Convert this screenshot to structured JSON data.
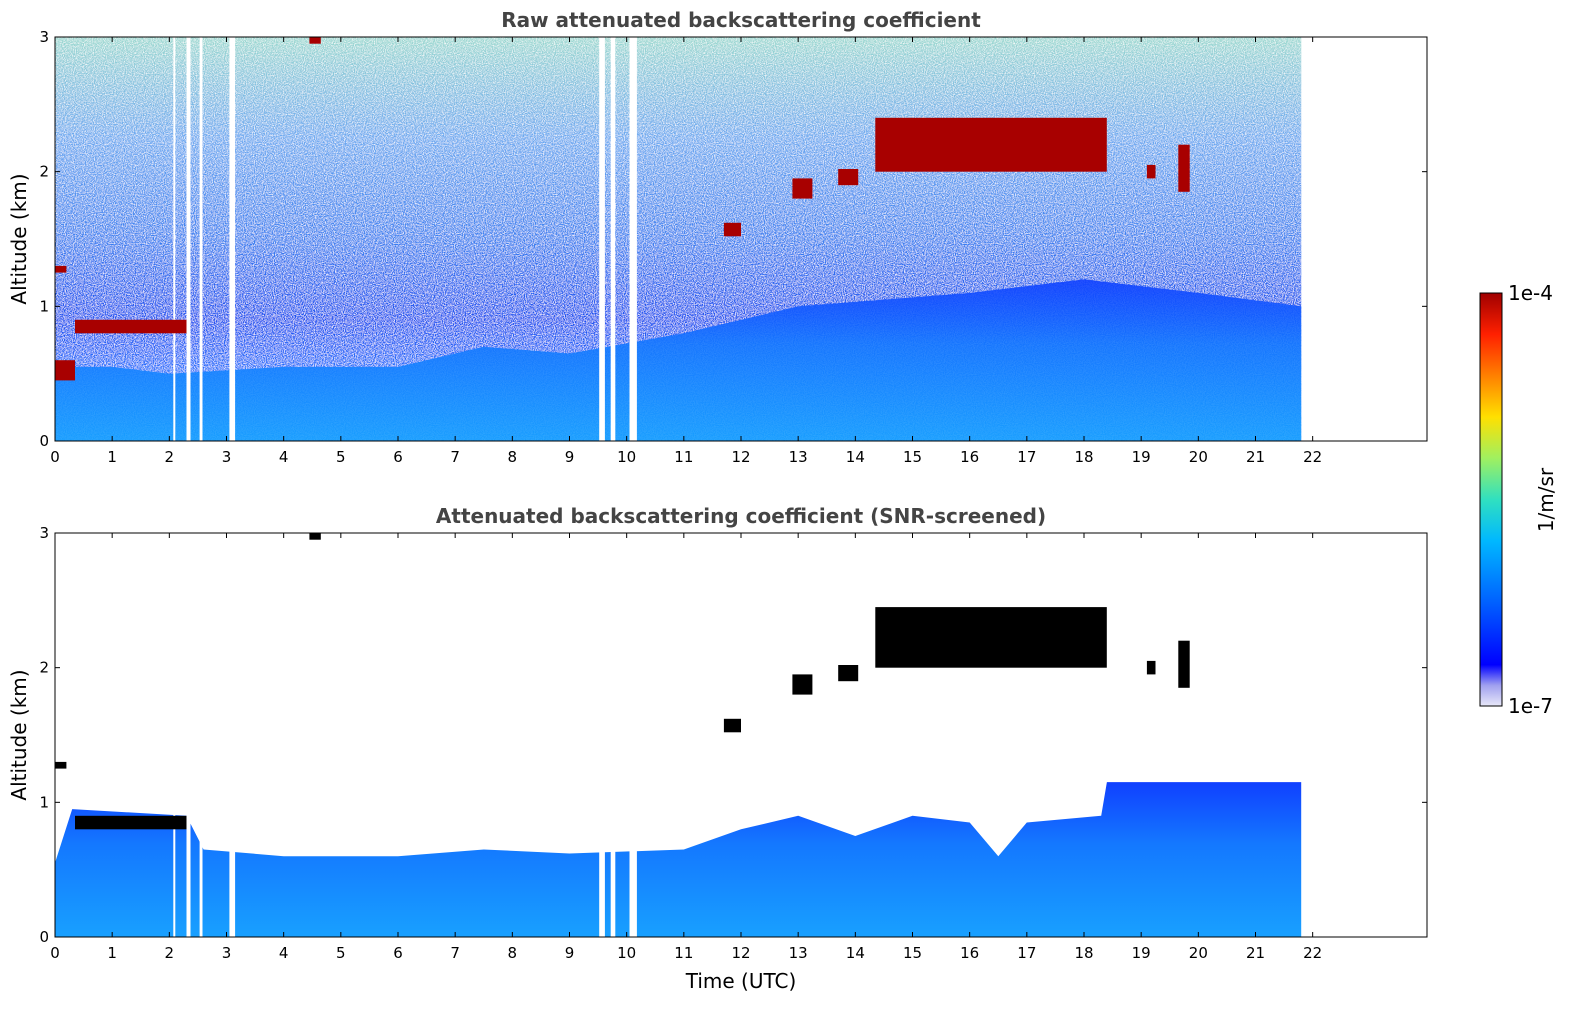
{
  "chart_data": [
    {
      "type": "heatmap",
      "title": "Raw attenuated backscattering coefficient",
      "xlabel": "",
      "ylabel": "Altitude (km)",
      "xlim": [
        0,
        24
      ],
      "ylim": [
        0,
        3
      ],
      "x_ticks": [
        "0",
        "1",
        "2",
        "3",
        "4",
        "5",
        "6",
        "7",
        "8",
        "9",
        "10",
        "11",
        "12",
        "13",
        "14",
        "15",
        "16",
        "17",
        "18",
        "19",
        "20",
        "21",
        "22"
      ],
      "y_ticks": [
        "0",
        "1",
        "2",
        "3"
      ],
      "data_end_time": 21.8,
      "missing_time_gaps": [
        [
          2.07,
          2.1
        ],
        [
          2.3,
          2.37
        ],
        [
          2.53,
          2.58
        ],
        [
          3.05,
          3.15
        ],
        [
          9.52,
          9.62
        ],
        [
          9.72,
          9.8
        ],
        [
          10.05,
          10.18
        ]
      ],
      "aerosol_layer_top_km": [
        [
          0,
          0.55
        ],
        [
          1,
          0.55
        ],
        [
          2,
          0.5
        ],
        [
          4,
          0.55
        ],
        [
          6,
          0.55
        ],
        [
          7.5,
          0.7
        ],
        [
          9,
          0.65
        ],
        [
          11,
          0.8
        ],
        [
          13,
          1.0
        ],
        [
          16,
          1.1
        ],
        [
          18,
          1.2
        ],
        [
          20,
          1.1
        ],
        [
          21.8,
          1.0
        ]
      ],
      "cloud_layers": [
        {
          "x": [
            0.35,
            2.3
          ],
          "y": [
            0.8,
            0.9
          ]
        },
        {
          "x": [
            0.0,
            0.35
          ],
          "y": [
            0.45,
            0.6
          ]
        },
        {
          "x": [
            0.0,
            0.2
          ],
          "y": [
            1.25,
            1.3
          ]
        },
        {
          "x": [
            4.45,
            4.65
          ],
          "y": [
            2.95,
            3.0
          ]
        },
        {
          "x": [
            11.7,
            12.0
          ],
          "y": [
            1.52,
            1.62
          ]
        },
        {
          "x": [
            12.9,
            13.25
          ],
          "y": [
            1.8,
            1.95
          ]
        },
        {
          "x": [
            13.7,
            14.05
          ],
          "y": [
            1.9,
            2.02
          ]
        },
        {
          "x": [
            14.35,
            18.4
          ],
          "y": [
            2.0,
            2.4
          ]
        },
        {
          "x": [
            19.1,
            19.25
          ],
          "y": [
            1.95,
            2.05
          ]
        },
        {
          "x": [
            19.65,
            19.85
          ],
          "y": [
            1.85,
            2.2
          ]
        }
      ]
    },
    {
      "type": "heatmap",
      "title": "Attenuated backscattering coefficient (SNR-screened)",
      "xlabel": "Time (UTC)",
      "ylabel": "Altitude (km)",
      "xlim": [
        0,
        24
      ],
      "ylim": [
        0,
        3
      ],
      "x_ticks": [
        "0",
        "1",
        "2",
        "3",
        "4",
        "5",
        "6",
        "7",
        "8",
        "9",
        "10",
        "11",
        "12",
        "13",
        "14",
        "15",
        "16",
        "17",
        "18",
        "19",
        "20",
        "21",
        "22"
      ],
      "y_ticks": [
        "0",
        "1",
        "2",
        "3"
      ],
      "data_end_time": 21.8,
      "screened_layer_top_km": [
        [
          0,
          0.55
        ],
        [
          0.3,
          0.95
        ],
        [
          2.3,
          0.9
        ],
        [
          2.6,
          0.65
        ],
        [
          4,
          0.6
        ],
        [
          6,
          0.6
        ],
        [
          7.5,
          0.65
        ],
        [
          9,
          0.62
        ],
        [
          11,
          0.65
        ],
        [
          12,
          0.8
        ],
        [
          13,
          0.9
        ],
        [
          14,
          0.75
        ],
        [
          15,
          0.9
        ],
        [
          16,
          0.85
        ],
        [
          16.5,
          0.6
        ],
        [
          17,
          0.85
        ],
        [
          18.3,
          0.9
        ],
        [
          18.4,
          1.15
        ],
        [
          20,
          1.15
        ],
        [
          21.8,
          1.15
        ]
      ],
      "cloud_layers": [
        {
          "x": [
            0.35,
            2.3
          ],
          "y": [
            0.8,
            0.9
          ]
        },
        {
          "x": [
            0.0,
            0.2
          ],
          "y": [
            1.25,
            1.3
          ]
        },
        {
          "x": [
            4.45,
            4.65
          ],
          "y": [
            2.95,
            3.0
          ]
        },
        {
          "x": [
            11.7,
            12.0
          ],
          "y": [
            1.52,
            1.62
          ]
        },
        {
          "x": [
            12.9,
            13.25
          ],
          "y": [
            1.8,
            1.95
          ]
        },
        {
          "x": [
            13.7,
            14.05
          ],
          "y": [
            1.9,
            2.02
          ]
        },
        {
          "x": [
            14.35,
            18.4
          ],
          "y": [
            2.0,
            2.45
          ]
        },
        {
          "x": [
            19.1,
            19.25
          ],
          "y": [
            1.95,
            2.05
          ]
        },
        {
          "x": [
            19.65,
            19.85
          ],
          "y": [
            1.85,
            2.2
          ]
        }
      ]
    }
  ],
  "colorbar": {
    "max_label": "1e-4",
    "min_label": "1e-7",
    "unit_label": "1/m/sr",
    "scale": "log",
    "range": [
      1e-07,
      0.0001
    ],
    "colormap": [
      "#e8e8f8",
      "#a0a0f0",
      "#0000ff",
      "#0060ff",
      "#00b8ff",
      "#30e0c0",
      "#a0f060",
      "#ffe000",
      "#ff8000",
      "#ff2000",
      "#a00000"
    ]
  }
}
